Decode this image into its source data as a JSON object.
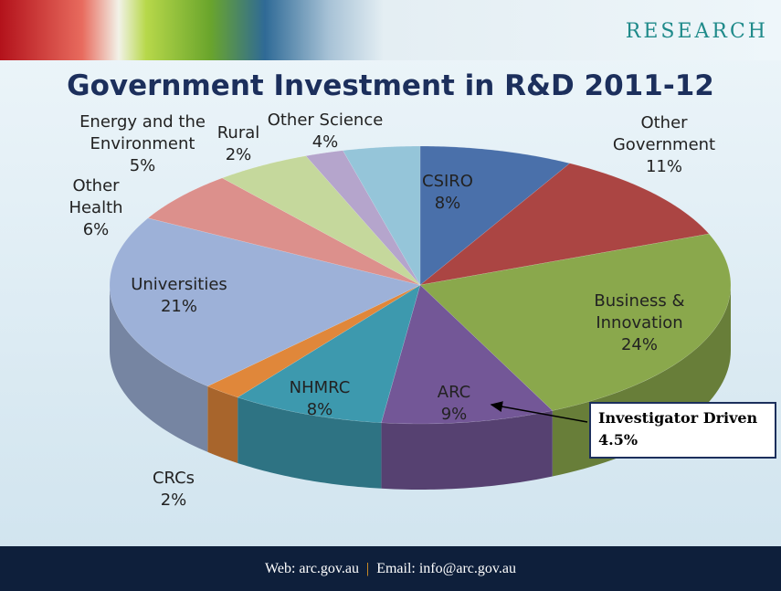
{
  "header": {
    "brand": "RESEARCH"
  },
  "chart_data": {
    "type": "pie",
    "title": "Government Investment in R&D 2011-12",
    "categories": [
      "CSIRO",
      "Other Government",
      "Business & Innovation",
      "ARC",
      "NHMRC",
      "CRCs",
      "Universities",
      "Other Health",
      "Energy and the Environment",
      "Rural",
      "Other Science"
    ],
    "values": [
      8,
      11,
      24,
      9,
      8,
      2,
      21,
      6,
      5,
      2,
      4
    ],
    "value_labels": [
      "8%",
      "11%",
      "24%",
      "9%",
      "8%",
      "2%",
      "21%",
      "6%",
      "5%",
      "2%",
      "4%"
    ],
    "colors": [
      "#4a70aa",
      "#ab4543",
      "#8aa84c",
      "#735797",
      "#3d99ae",
      "#e0873a",
      "#9db1d8",
      "#dc908c",
      "#c5d89c",
      "#b5a5cc",
      "#95c5d9"
    ],
    "annotation": {
      "text": "Investigator Driven",
      "value_label": "4.5%"
    }
  },
  "footer": {
    "web": "Web: arc.gov.au",
    "separator": "|",
    "email": "Email: info@arc.gov.au"
  }
}
